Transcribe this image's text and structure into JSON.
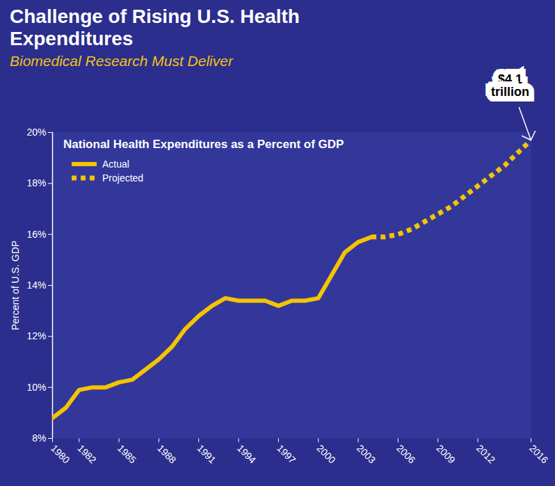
{
  "chart_data": {
    "type": "line",
    "title": "Challenge of Rising U.S. Health Expenditures",
    "subtitle": "Biomedical Research Must Deliver",
    "plot_title": "National Health Expenditures as a Percent of GDP",
    "y_label": "Percent of U.S. GDP",
    "x": [
      1980,
      1981,
      1982,
      1983,
      1984,
      1985,
      1986,
      1987,
      1988,
      1989,
      1990,
      1991,
      1992,
      1993,
      1994,
      1995,
      1996,
      1997,
      1998,
      1999,
      2000,
      2001,
      2002,
      2003,
      2004,
      2005,
      2006,
      2007,
      2008,
      2009,
      2010,
      2011,
      2012,
      2013,
      2014,
      2015,
      2016
    ],
    "series": [
      {
        "name": "Actual",
        "color": "#f5c400",
        "line_style": "solid",
        "values": [
          8.8,
          9.2,
          9.9,
          10.0,
          10.0,
          10.2,
          10.3,
          10.7,
          11.1,
          11.6,
          12.3,
          12.8,
          13.2,
          13.5,
          13.4,
          13.4,
          13.4,
          13.2,
          13.4,
          13.4,
          13.5,
          14.4,
          15.3,
          15.7,
          15.9,
          null,
          null,
          null,
          null,
          null,
          null,
          null,
          null,
          null,
          null,
          null,
          null
        ]
      },
      {
        "name": "Projected",
        "color": "#f5c400",
        "line_style": "dotted",
        "values": [
          null,
          null,
          null,
          null,
          null,
          null,
          null,
          null,
          null,
          null,
          null,
          null,
          null,
          null,
          null,
          null,
          null,
          null,
          null,
          null,
          null,
          null,
          null,
          null,
          15.9,
          15.9,
          16.0,
          16.2,
          16.5,
          16.8,
          17.1,
          17.5,
          17.9,
          18.3,
          18.7,
          19.2,
          19.7
        ]
      }
    ],
    "xlim": [
      1980,
      2016
    ],
    "xticks": [
      1980,
      1982,
      1985,
      1988,
      1991,
      1994,
      1997,
      2000,
      2003,
      2006,
      2009,
      2012,
      2016
    ],
    "ylim": [
      8,
      20
    ],
    "yticks": [
      {
        "value": 8,
        "label": "8%"
      },
      {
        "value": 10,
        "label": "10%"
      },
      {
        "value": 12,
        "label": "12%"
      },
      {
        "value": 14,
        "label": "14%"
      },
      {
        "value": 16,
        "label": "16%"
      },
      {
        "value": 18,
        "label": "18%"
      },
      {
        "value": 20,
        "label": "20%"
      }
    ],
    "annotations": [
      {
        "text": "$4.1 trillion",
        "x": 2016,
        "y": 19.7
      }
    ],
    "grid": false,
    "legend": "top-left"
  }
}
